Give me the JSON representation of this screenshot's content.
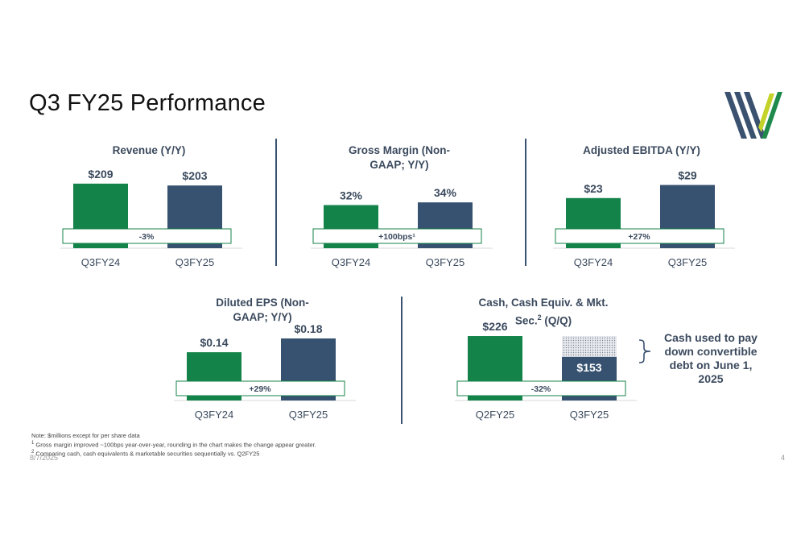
{
  "page": {
    "title": "Q3 FY25 Performance",
    "date": "8/7/2025",
    "page_number": "4"
  },
  "colors": {
    "green": "#14834a",
    "navy": "#365270",
    "text": "#3b4a5e",
    "logo_navy": "#3a5270",
    "logo_green": "#1e8a4c",
    "logo_lime": "#c3d32a"
  },
  "logo": {
    "icon": "company-logo-icon"
  },
  "chart_data": [
    {
      "id": "revenue",
      "type": "bar",
      "title": "Revenue (Y/Y)",
      "categories": [
        "Q3FY24",
        "Q3FY25"
      ],
      "values": [
        209,
        203
      ],
      "value_labels": [
        "$209",
        "$203"
      ],
      "change_label": "-3%",
      "ylim": [
        0,
        240
      ]
    },
    {
      "id": "gross-margin",
      "type": "bar",
      "title": "Gross Margin (Non-GAAP; Y/Y)",
      "categories": [
        "Q3FY24",
        "Q3FY25"
      ],
      "values": [
        32,
        34
      ],
      "value_labels": [
        "32%",
        "34%"
      ],
      "change_label": "+100bps¹",
      "ylim": [
        0,
        55
      ]
    },
    {
      "id": "adjusted-ebitda",
      "type": "bar",
      "title": "Adjusted EBITDA (Y/Y)",
      "categories": [
        "Q3FY24",
        "Q3FY25"
      ],
      "values": [
        23,
        29
      ],
      "value_labels": [
        "$23",
        "$29"
      ],
      "change_label": "+27%",
      "ylim": [
        0,
        34
      ]
    },
    {
      "id": "diluted-eps",
      "type": "bar",
      "title": "Diluted EPS (Non-GAAP; Y/Y)",
      "categories": [
        "Q3FY24",
        "Q3FY25"
      ],
      "values": [
        0.14,
        0.18
      ],
      "value_labels": [
        "$0.14",
        "$0.18"
      ],
      "change_label": "+29%",
      "ylim": [
        0,
        0.215
      ]
    },
    {
      "id": "cash",
      "type": "bar",
      "title": "Cash, Cash Equiv. & Mkt. Sec.² (Q/Q)",
      "categories": [
        "Q2FY25",
        "Q3FY25"
      ],
      "values": [
        226,
        153
      ],
      "value_labels": [
        "$226",
        "$153"
      ],
      "change_label": "-32%",
      "ghost_value": 226,
      "ylim": [
        0,
        260
      ]
    }
  ],
  "callout": {
    "text": "Cash used to pay down convertible debt on June 1, 2025"
  },
  "notes": {
    "line1": "Note: $millions except for per share data",
    "line2_sup": "1",
    "line2": " Gross margin improved ~100bps year-over-year, rounding in the chart makes the change appear greater.",
    "line3_sup": "2",
    "line3": " Comparing cash, cash equivalents & marketable securities sequentially vs. Q2FY25"
  }
}
